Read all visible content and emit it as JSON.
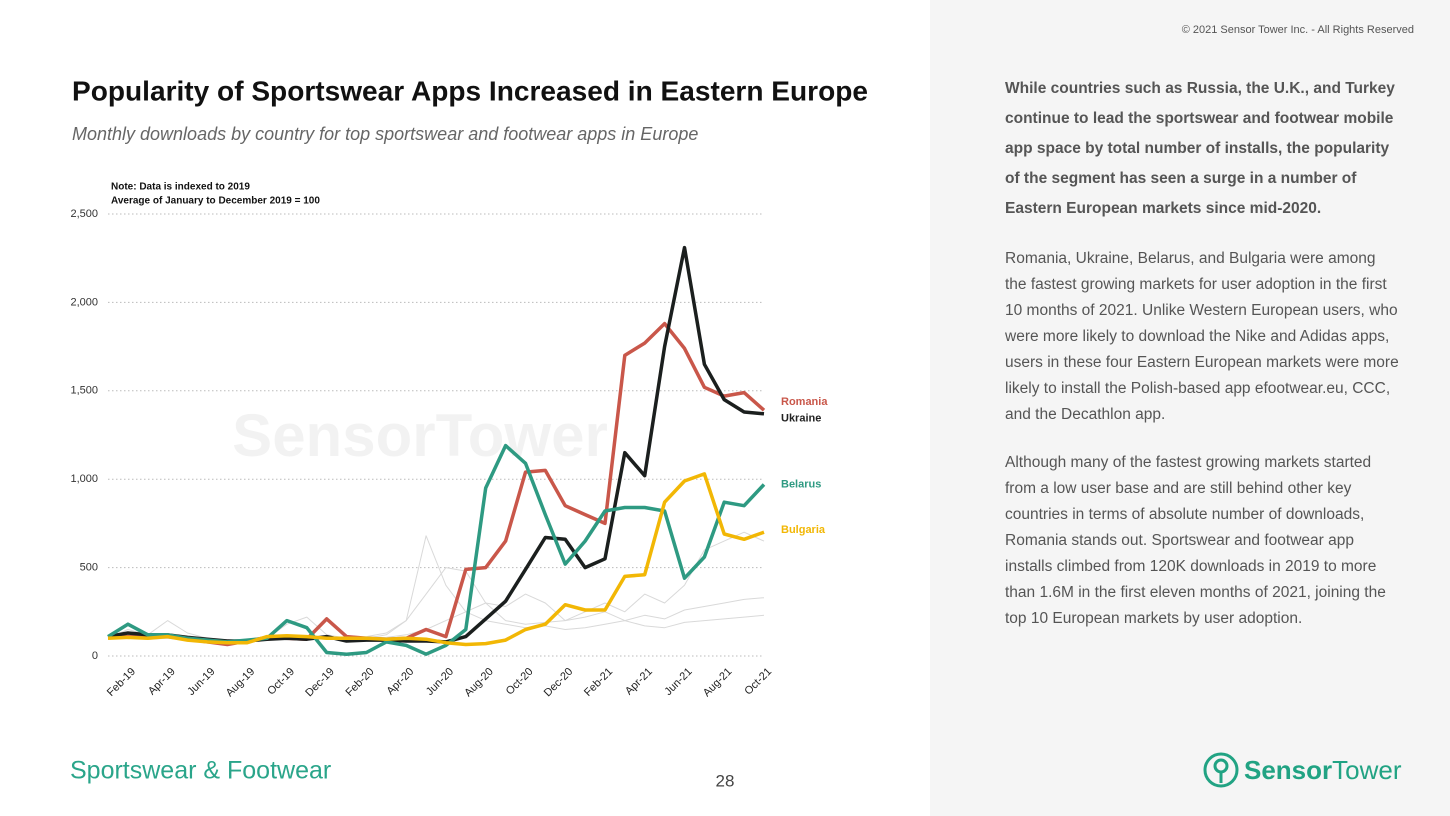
{
  "chart_data": {
    "type": "line",
    "title": "Popularity of Sportswear Apps Increased in Eastern Europe",
    "subtitle": "Monthly downloads by country for top sportswear and footwear apps in Europe",
    "notes": [
      "Note: Data is indexed to 2019",
      "Average of January to December 2019 = 100"
    ],
    "categories": [
      null,
      "Feb-19",
      null,
      "Apr-19",
      null,
      "Jun-19",
      null,
      "Aug-19",
      null,
      "Oct-19",
      null,
      "Dec-19",
      null,
      "Feb-20",
      null,
      "Apr-20",
      null,
      "Jun-20",
      null,
      "Aug-20",
      null,
      "Oct-20",
      null,
      "Dec-20",
      null,
      "Feb-21",
      null,
      "Apr-21",
      null,
      "Jun-21",
      null,
      "Aug-21",
      null,
      "Oct-21"
    ],
    "ylim": [
      0,
      2500
    ],
    "yticks": [
      0,
      500,
      {
        "value": 1000,
        "label": "1,000"
      },
      {
        "value": 1500,
        "label": "1,500"
      },
      {
        "value": 2000,
        "label": "2,000"
      },
      {
        "value": 2500,
        "label": "2,500"
      }
    ],
    "grid": true,
    "series": [
      {
        "color": "#d9d9d9",
        "values": [
          100,
          150,
          120,
          200,
          130,
          100,
          90,
          80,
          100,
          180,
          220,
          120,
          100,
          100,
          120,
          200,
          350,
          500,
          480,
          300,
          280,
          350,
          300,
          200,
          250,
          300,
          250,
          350,
          300,
          400,
          600,
          650,
          700,
          650
        ]
      },
      {
        "color": "#d9d9d9",
        "values": [
          100,
          110,
          100,
          100,
          90,
          85,
          80,
          90,
          100,
          120,
          110,
          100,
          100,
          110,
          130,
          200,
          680,
          400,
          250,
          300,
          200,
          180,
          190,
          200,
          220,
          250,
          200,
          230,
          210,
          260,
          280,
          300,
          320,
          330
        ]
      },
      {
        "color": "#d9d9d9",
        "values": [
          100,
          100,
          95,
          100,
          90,
          90,
          85,
          95,
          100,
          100,
          100,
          95,
          95,
          100,
          105,
          120,
          150,
          200,
          250,
          200,
          180,
          160,
          170,
          150,
          160,
          180,
          200,
          170,
          160,
          190,
          200,
          210,
          220,
          230
        ]
      },
      {
        "name": "Romania",
        "color": "#c9574a",
        "values": [
          110,
          110,
          115,
          110,
          95,
          80,
          65,
          85,
          105,
          100,
          95,
          210,
          110,
          100,
          95,
          100,
          150,
          110,
          490,
          500,
          650,
          1040,
          1050,
          850,
          800,
          750,
          1700,
          1770,
          1880,
          1740,
          1520,
          1470,
          1490,
          1390
        ]
      },
      {
        "name": "Ukraine",
        "color": "#1b1f1e",
        "values": [
          110,
          130,
          120,
          120,
          105,
          95,
          85,
          85,
          95,
          100,
          95,
          110,
          85,
          90,
          90,
          85,
          85,
          80,
          110,
          210,
          310,
          490,
          670,
          660,
          500,
          550,
          1150,
          1020,
          1750,
          2310,
          1650,
          1450,
          1380,
          1370
        ]
      },
      {
        "name": "Belarus",
        "color": "#2e9a82",
        "values": [
          110,
          180,
          120,
          120,
          100,
          90,
          80,
          90,
          100,
          200,
          160,
          20,
          10,
          20,
          80,
          60,
          10,
          60,
          150,
          950,
          1190,
          1090,
          800,
          520,
          650,
          820,
          840,
          840,
          820,
          440,
          560,
          870,
          850,
          970
        ]
      },
      {
        "name": "Bulgaria",
        "color": "#f2b705",
        "values": [
          100,
          105,
          100,
          110,
          90,
          80,
          75,
          75,
          110,
          115,
          110,
          100,
          100,
          100,
          95,
          100,
          95,
          75,
          65,
          70,
          90,
          150,
          180,
          290,
          260,
          260,
          450,
          460,
          870,
          990,
          1030,
          690,
          660,
          700
        ]
      }
    ]
  },
  "watermark": "SensorTower",
  "footer": {
    "section": "Sportswear & Footwear",
    "page": 28
  },
  "copyright": "© 2021 Sensor Tower Inc. - All Rights Reserved",
  "sidebar": {
    "paragraphs": [
      "While countries such as Russia, the U.K., and Turkey continue to lead the sportswear and footwear mobile app space by total number of installs, the popularity of the segment has seen a surge in a number of Eastern European markets since mid-2020.",
      "Romania, Ukraine, Belarus, and Bulgaria were among the fastest growing markets for user adoption in the first 10 months of 2021. Unlike Western European users, who were more likely to download the Nike and Adidas apps, users in these four Eastern European markets were more likely to install the Polish-based app efootwear.eu, CCC, and the Decathlon app.",
      "Although many of the fastest growing markets started from a low user base and are still behind other key countries in terms of absolute number of downloads, Romania stands out. Sportswear and footwear app installs climbed from 120K downloads in 2019 to more than 1.6M in the first eleven months of 2021, joining the top 10 European markets by user adoption."
    ]
  },
  "logo": {
    "parts": [
      "Sensor",
      "Tower"
    ]
  }
}
